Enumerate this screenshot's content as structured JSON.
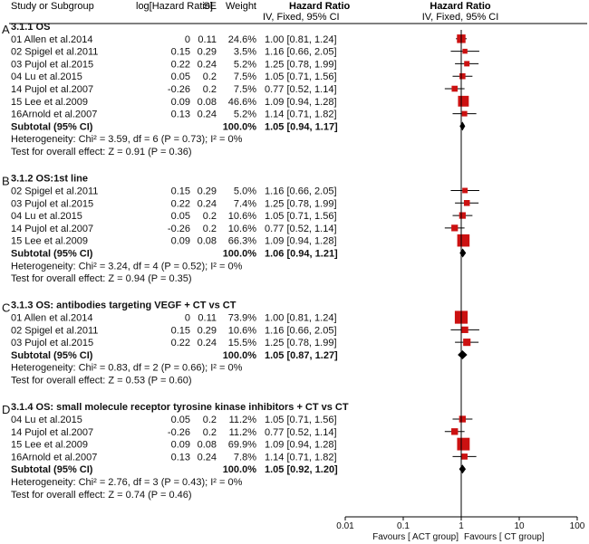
{
  "chart_data": {
    "type": "forest",
    "columns": {
      "study": "Study or Subgroup",
      "loghr": "log[Hazard Ratio]",
      "se": "SE",
      "weight": "Weight",
      "hr_title": "Hazard Ratio",
      "hr_sub": "IV, Fixed, 95% CI",
      "plot_title": "Hazard Ratio",
      "plot_sub": "IV, Fixed, 95% CI"
    },
    "x_axis": {
      "scale": "log",
      "range": [
        0.01,
        100
      ],
      "ticks": [
        0.01,
        0.1,
        1,
        10,
        100
      ],
      "tick_labels": [
        "0.01",
        "0.1",
        "1",
        "10",
        "100"
      ],
      "null_value": 1,
      "favours_left": "Favours [ ACT group]",
      "favours_right": "Favours [ CT group]"
    },
    "panels": [
      {
        "letter": "A",
        "title": "3.1.1 OS",
        "studies": [
          {
            "name": "01 Allen et al.2014",
            "loghr": "0",
            "se": "0.11",
            "weight": "24.6%",
            "ci": "1.00 [0.81, 1.24]",
            "hr": 1.0,
            "lo": 0.81,
            "hi": 1.24,
            "w": 24.6
          },
          {
            "name": "02 Spigel et al.2011",
            "loghr": "0.15",
            "se": "0.29",
            "weight": "3.5%",
            "ci": "1.16 [0.66, 2.05]",
            "hr": 1.16,
            "lo": 0.66,
            "hi": 2.05,
            "w": 3.5
          },
          {
            "name": "03 Pujol et al.2015",
            "loghr": "0.22",
            "se": "0.24",
            "weight": "5.2%",
            "ci": "1.25 [0.78, 1.99]",
            "hr": 1.25,
            "lo": 0.78,
            "hi": 1.99,
            "w": 5.2
          },
          {
            "name": "04 Lu et al.2015",
            "loghr": "0.05",
            "se": "0.2",
            "weight": "7.5%",
            "ci": "1.05 [0.71, 1.56]",
            "hr": 1.05,
            "lo": 0.71,
            "hi": 1.56,
            "w": 7.5
          },
          {
            "name": "14 Pujol et al.2007",
            "loghr": "-0.26",
            "se": "0.2",
            "weight": "7.5%",
            "ci": "0.77 [0.52, 1.14]",
            "hr": 0.77,
            "lo": 0.52,
            "hi": 1.14,
            "w": 7.5
          },
          {
            "name": "15 Lee et al.2009",
            "loghr": "0.09",
            "se": "0.08",
            "weight": "46.6%",
            "ci": "1.09 [0.94, 1.28]",
            "hr": 1.09,
            "lo": 0.94,
            "hi": 1.28,
            "w": 46.6
          },
          {
            "name": "16Arnold et al.2007",
            "loghr": "0.13",
            "se": "0.24",
            "weight": "5.2%",
            "ci": "1.14 [0.71, 1.82]",
            "hr": 1.14,
            "lo": 0.71,
            "hi": 1.82,
            "w": 5.2
          }
        ],
        "subtotal": {
          "label": "Subtotal (95% CI)",
          "weight": "100.0%",
          "ci": "1.05 [0.94, 1.17]",
          "hr": 1.05,
          "lo": 0.94,
          "hi": 1.17
        },
        "heterogeneity": "Heterogeneity: Chi² = 3.59, df = 6 (P = 0.73); I² = 0%",
        "overall": "Test for overall effect: Z = 0.91 (P = 0.36)"
      },
      {
        "letter": "B",
        "title": "3.1.2 OS:1st line",
        "studies": [
          {
            "name": "02 Spigel et al.2011",
            "loghr": "0.15",
            "se": "0.29",
            "weight": "5.0%",
            "ci": "1.16 [0.66, 2.05]",
            "hr": 1.16,
            "lo": 0.66,
            "hi": 2.05,
            "w": 5.0
          },
          {
            "name": "03 Pujol et al.2015",
            "loghr": "0.22",
            "se": "0.24",
            "weight": "7.4%",
            "ci": "1.25 [0.78, 1.99]",
            "hr": 1.25,
            "lo": 0.78,
            "hi": 1.99,
            "w": 7.4
          },
          {
            "name": "04 Lu et al.2015",
            "loghr": "0.05",
            "se": "0.2",
            "weight": "10.6%",
            "ci": "1.05 [0.71, 1.56]",
            "hr": 1.05,
            "lo": 0.71,
            "hi": 1.56,
            "w": 10.6
          },
          {
            "name": "14 Pujol et al.2007",
            "loghr": "-0.26",
            "se": "0.2",
            "weight": "10.6%",
            "ci": "0.77 [0.52, 1.14]",
            "hr": 0.77,
            "lo": 0.52,
            "hi": 1.14,
            "w": 10.6
          },
          {
            "name": "15 Lee et al.2009",
            "loghr": "0.09",
            "se": "0.08",
            "weight": "66.3%",
            "ci": "1.09 [0.94, 1.28]",
            "hr": 1.09,
            "lo": 0.94,
            "hi": 1.28,
            "w": 66.3
          }
        ],
        "subtotal": {
          "label": "Subtotal (95% CI)",
          "weight": "100.0%",
          "ci": "1.06 [0.94, 1.21]",
          "hr": 1.06,
          "lo": 0.94,
          "hi": 1.21
        },
        "heterogeneity": "Heterogeneity: Chi² = 3.24, df = 4 (P = 0.52); I² = 0%",
        "overall": "Test for overall effect: Z = 0.94 (P = 0.35)"
      },
      {
        "letter": "C",
        "title": "3.1.3 OS: antibodies targeting VEGF + CT vs CT",
        "studies": [
          {
            "name": "01 Allen et al.2014",
            "loghr": "0",
            "se": "0.11",
            "weight": "73.9%",
            "ci": "1.00 [0.81, 1.24]",
            "hr": 1.0,
            "lo": 0.81,
            "hi": 1.24,
            "w": 73.9
          },
          {
            "name": "02 Spigel et al.2011",
            "loghr": "0.15",
            "se": "0.29",
            "weight": "10.6%",
            "ci": "1.16 [0.66, 2.05]",
            "hr": 1.16,
            "lo": 0.66,
            "hi": 2.05,
            "w": 10.6
          },
          {
            "name": "03 Pujol et al.2015",
            "loghr": "0.22",
            "se": "0.24",
            "weight": "15.5%",
            "ci": "1.25 [0.78, 1.99]",
            "hr": 1.25,
            "lo": 0.78,
            "hi": 1.99,
            "w": 15.5
          }
        ],
        "subtotal": {
          "label": "Subtotal (95% CI)",
          "weight": "100.0%",
          "ci": "1.05 [0.87, 1.27]",
          "hr": 1.05,
          "lo": 0.87,
          "hi": 1.27
        },
        "heterogeneity": "Heterogeneity: Chi² = 0.83, df = 2 (P = 0.66); I² = 0%",
        "overall": "Test for overall effect: Z = 0.53 (P = 0.60)"
      },
      {
        "letter": "D",
        "title": "3.1.4 OS: small molecule receptor tyrosine kinase inhibitors + CT vs CT",
        "studies": [
          {
            "name": "04 Lu et al.2015",
            "loghr": "0.05",
            "se": "0.2",
            "weight": "11.2%",
            "ci": "1.05 [0.71, 1.56]",
            "hr": 1.05,
            "lo": 0.71,
            "hi": 1.56,
            "w": 11.2
          },
          {
            "name": "14 Pujol et al.2007",
            "loghr": "-0.26",
            "se": "0.2",
            "weight": "11.2%",
            "ci": "0.77 [0.52, 1.14]",
            "hr": 0.77,
            "lo": 0.52,
            "hi": 1.14,
            "w": 11.2
          },
          {
            "name": "15 Lee et al.2009",
            "loghr": "0.09",
            "se": "0.08",
            "weight": "69.9%",
            "ci": "1.09 [0.94, 1.28]",
            "hr": 1.09,
            "lo": 0.94,
            "hi": 1.28,
            "w": 69.9
          },
          {
            "name": "16Arnold et al.2007",
            "loghr": "0.13",
            "se": "0.24",
            "weight": "7.8%",
            "ci": "1.14 [0.71, 1.82]",
            "hr": 1.14,
            "lo": 0.71,
            "hi": 1.82,
            "w": 7.8
          }
        ],
        "subtotal": {
          "label": "Subtotal (95% CI)",
          "weight": "100.0%",
          "ci": "1.05 [0.92, 1.20]",
          "hr": 1.05,
          "lo": 0.92,
          "hi": 1.2
        },
        "heterogeneity": "Heterogeneity: Chi² = 2.76, df = 3 (P = 0.43); I² = 0%",
        "overall": "Test for overall effect: Z = 0.74 (P = 0.46)"
      }
    ],
    "colors": {
      "square": "#cc1111",
      "diamond": "#000000",
      "line": "#000000"
    }
  }
}
